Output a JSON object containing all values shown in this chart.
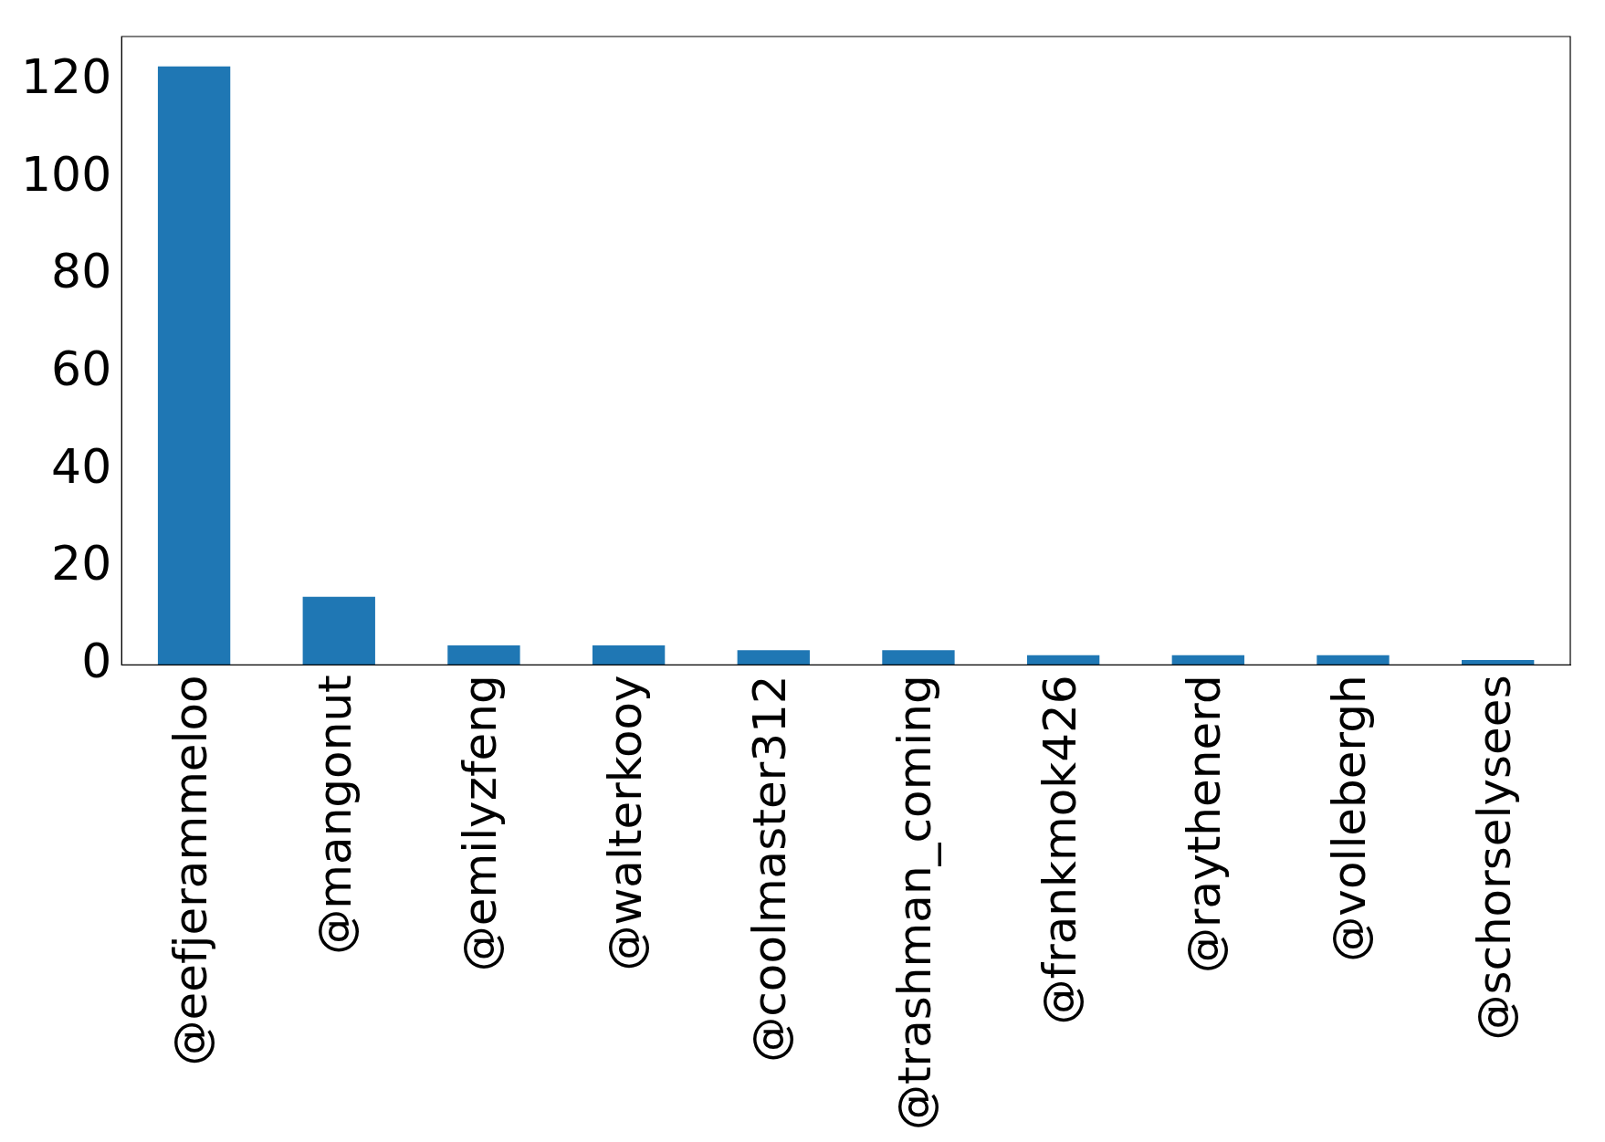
{
  "chart_data": {
    "type": "bar",
    "categories": [
      "@eefjerammeloo",
      "@mangonut",
      "@emilyzfeng",
      "@walterkooy",
      "@coolmaster312",
      "@trashman_coming",
      "@frankmok426",
      "@raythenerd",
      "@vollebergh",
      "@schorselysees"
    ],
    "values": [
      123,
      14,
      4,
      4,
      3,
      3,
      2,
      2,
      2,
      1
    ],
    "color": "#1f77b4",
    "ylim": [
      0,
      129.15
    ],
    "yticks": [
      0,
      20,
      40,
      60,
      80,
      100,
      120
    ],
    "grid": false,
    "legend": false
  }
}
